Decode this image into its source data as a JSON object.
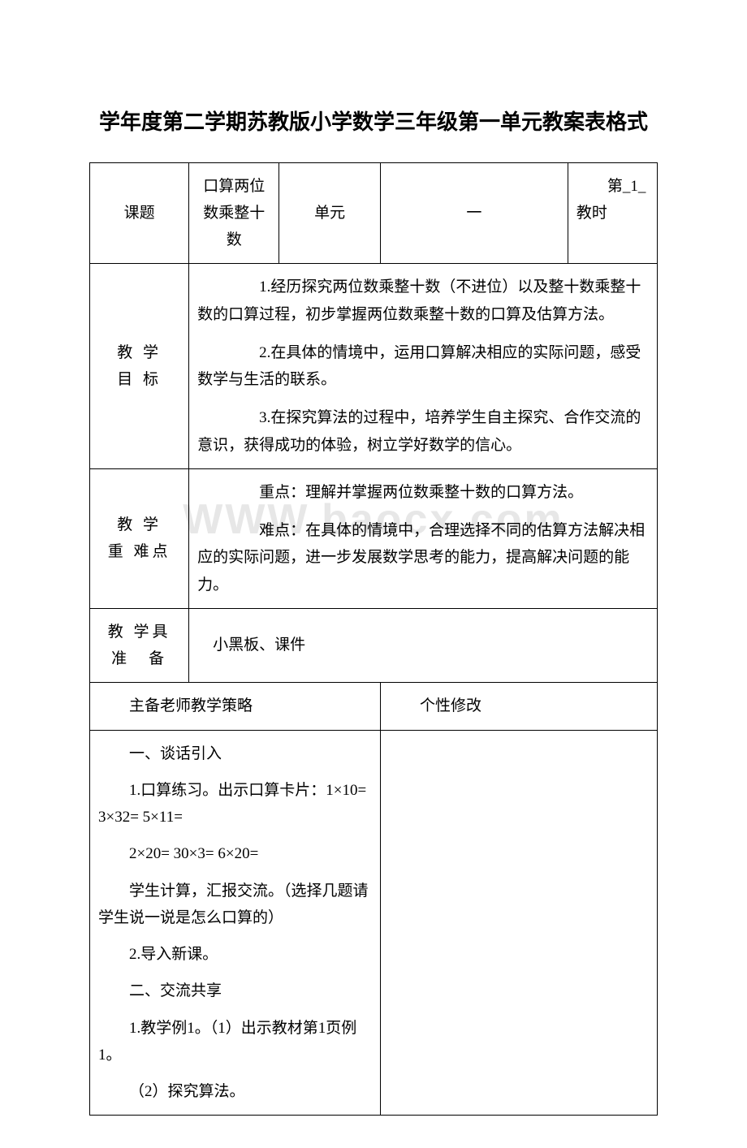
{
  "watermark": "WWW.baocx.com",
  "title": "学年度第二学期苏教版小学数学三年级第一单元教案表格式",
  "header": {
    "topic_label": "课题",
    "topic_value": "口算两位数乘整十数",
    "unit_label": "单元",
    "unit_value": "一",
    "lesson": "　　第_1_教时"
  },
  "rows": {
    "goals_label": "教 学\n目 标",
    "goals_p1": "　　1.经历探究两位数乘整十数（不进位）以及整十数乘整十数的口算过程，初步掌握两位数乘整十数的口算及估算方法。",
    "goals_p2": "　　2.在具体的情境中，运用口算解决相应的实际问题，感受数学与生活的联系。",
    "goals_p3": "　　3.在探究算法的过程中，培养学生自主探究、合作交流的意识，获得成功的体验，树立学好数学的信心。",
    "difficulty_label": "教 学\n重 难点",
    "difficulty_p1": "　　重点：理解并掌握两位数乘整十数的口算方法。",
    "difficulty_p2": "　　难点：在具体的情境中，合理选择不同的估算方法解决相应的实际问题，进一步发展数学思考的能力，提高解决问题的能力。",
    "prep_label": "教 学具\n准　备",
    "prep_value": "　小黑板、课件",
    "strategy_label": "主备老师教学策略",
    "modify_label": "个性修改"
  },
  "strategy": {
    "p1": "一、谈话引入",
    "p2": "1.口算练习。出示口算卡片：1×10= 3×32= 5×11=",
    "p3": "2×20= 30×3= 6×20=",
    "p4": "学生计算，汇报交流。（选择几题请学生说一说是怎么口算的）",
    "p5": "2.导入新课。",
    "p6": "二、交流共享",
    "p7": "1.教学例1。（1）出示教材第1页例1。",
    "p8": "（2）探究算法。"
  },
  "colors": {
    "text": "#000000",
    "border": "#000000",
    "background": "#ffffff",
    "watermark": "#e7e7e7"
  }
}
